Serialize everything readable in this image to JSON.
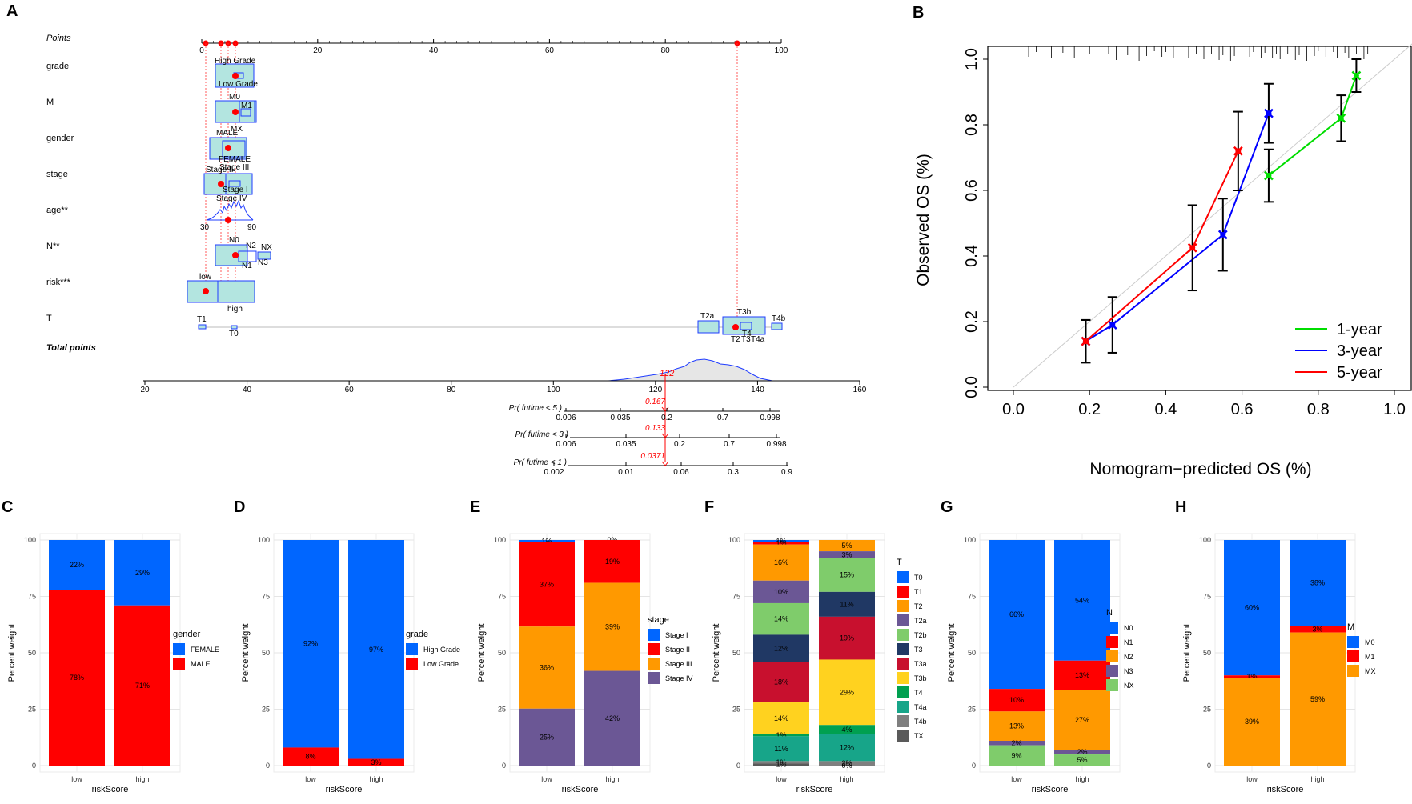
{
  "panel_letters": [
    "A",
    "B",
    "C",
    "D",
    "E",
    "F",
    "G",
    "H"
  ],
  "colors": {
    "blue": "#0066FF",
    "red": "#FF0000",
    "orange": "#FF9900",
    "purple": "#6B5795",
    "lightgreen": "#7FCC6B",
    "navy": "#203864",
    "darkred": "#C8102E",
    "yellow": "#FFD21F",
    "darkgreen": "#00A050",
    "teal": "#17A589",
    "grey": "#7F7F7F",
    "darkgrey": "#5A5A5A",
    "nomo_fill": "#B3E5E0",
    "nomo_box": "#1F3CFF",
    "green_line": "#00DD00"
  },
  "nomogram": {
    "points_label": "Points",
    "points_ticks": [
      "0",
      "20",
      "40",
      "60",
      "80",
      "100"
    ],
    "rows": [
      {
        "label": "grade",
        "sub": [
          "High Grade",
          "Low Grade"
        ]
      },
      {
        "label": "M",
        "sub": [
          "M0",
          "M1",
          "MX"
        ]
      },
      {
        "label": "gender",
        "sub": [
          "MALE",
          "FEMALE"
        ]
      },
      {
        "label": "stage",
        "sub": [
          "Stage II",
          "Stage III",
          "Stage I",
          "Stage IV"
        ]
      },
      {
        "label": "age**",
        "sub": [
          "30",
          "90"
        ]
      },
      {
        "label": "N**",
        "sub": [
          "N0",
          "N2",
          "NX",
          "N1",
          "N3"
        ]
      },
      {
        "label": "risk***",
        "sub": [
          "low",
          "high"
        ]
      },
      {
        "label": "T",
        "sub": [
          "T1",
          "T0",
          "T2a",
          "T3b",
          "T2",
          "T3",
          "T4a",
          "T4b",
          "T4"
        ]
      }
    ],
    "total_label": "Total points",
    "total_ticks": [
      "20",
      "40",
      "60",
      "80",
      "100",
      "120",
      "140",
      "160"
    ],
    "total_value": "122",
    "probs": [
      {
        "label": "Pr( futime < 5 )",
        "value": "0.167",
        "ticks": [
          "0.006",
          "0.035",
          "0.2",
          "0.7",
          "0.998"
        ]
      },
      {
        "label": "Pr( futime < 3 )",
        "value": "0.133",
        "ticks": [
          "0.006",
          "0.035",
          "0.2",
          "0.7",
          "0.998"
        ]
      },
      {
        "label": "Pr( futime < 1 )",
        "value": "0.0371",
        "ticks": [
          "0.002",
          "0.01",
          "0.06",
          "0.3",
          "0.9"
        ]
      }
    ]
  },
  "chart_data": [
    {
      "id": "B",
      "type": "line",
      "title": "",
      "xlabel": "Nomogram−predicted OS (%)",
      "ylabel": "Observed OS (%)",
      "xlim": [
        0,
        1
      ],
      "ylim": [
        0,
        1
      ],
      "xticks": [
        "0.0",
        "0.2",
        "0.4",
        "0.6",
        "0.8",
        "1.0"
      ],
      "yticks": [
        "0.0",
        "0.2",
        "0.4",
        "0.6",
        "0.8",
        "1.0"
      ],
      "legend_position": "bottom-right",
      "series": [
        {
          "name": "1-year",
          "color": "#00DD00",
          "x": [
            0.67,
            0.86,
            0.9
          ],
          "y": [
            0.645,
            0.82,
            0.95
          ],
          "err": [
            0.08,
            0.07,
            0.05
          ]
        },
        {
          "name": "3-year",
          "color": "#0000FF",
          "x": [
            0.19,
            0.26,
            0.55,
            0.67
          ],
          "y": [
            0.14,
            0.19,
            0.465,
            0.835
          ],
          "err": [
            0.065,
            0.085,
            0.11,
            0.09
          ]
        },
        {
          "name": "5-year",
          "color": "#FF0000",
          "x": [
            0.19,
            0.47,
            0.59
          ],
          "y": [
            0.14,
            0.425,
            0.72
          ],
          "err": [
            0.065,
            0.13,
            0.12
          ]
        }
      ]
    },
    {
      "id": "C",
      "type": "bar",
      "stacked": true,
      "xlabel": "riskScore",
      "ylabel": "Percent weight",
      "categories": [
        "low",
        "high"
      ],
      "yticks": [
        "0",
        "25",
        "50",
        "75",
        "100"
      ],
      "legend_title": "gender",
      "series": [
        {
          "name": "FEMALE",
          "color": "#0066FF",
          "values": [
            22,
            29
          ],
          "labels": [
            "22%",
            "29%"
          ]
        },
        {
          "name": "MALE",
          "color": "#FF0000",
          "values": [
            78,
            71
          ],
          "labels": [
            "78%",
            "71%"
          ]
        }
      ]
    },
    {
      "id": "D",
      "type": "bar",
      "stacked": true,
      "xlabel": "riskScore",
      "ylabel": "Percent weight",
      "categories": [
        "low",
        "high"
      ],
      "yticks": [
        "0",
        "25",
        "50",
        "75",
        "100"
      ],
      "legend_title": "grade",
      "series": [
        {
          "name": "High Grade",
          "color": "#0066FF",
          "values": [
            92,
            97
          ],
          "labels": [
            "92%",
            "97%"
          ]
        },
        {
          "name": "Low Grade",
          "color": "#FF0000",
          "values": [
            8,
            3
          ],
          "labels": [
            "8%",
            "3%"
          ]
        }
      ]
    },
    {
      "id": "E",
      "type": "bar",
      "stacked": true,
      "xlabel": "riskScore",
      "ylabel": "Percent weight",
      "categories": [
        "low",
        "high"
      ],
      "yticks": [
        "0",
        "25",
        "50",
        "75",
        "100"
      ],
      "legend_title": "stage",
      "series": [
        {
          "name": "Stage I",
          "color": "#0066FF",
          "values": [
            1,
            0
          ],
          "labels": [
            "1%",
            "0%"
          ]
        },
        {
          "name": "Stage II",
          "color": "#FF0000",
          "values": [
            37,
            19
          ],
          "labels": [
            "37%",
            "19%"
          ]
        },
        {
          "name": "Stage III",
          "color": "#FF9900",
          "values": [
            36,
            39
          ],
          "labels": [
            "36%",
            "39%"
          ]
        },
        {
          "name": "Stage IV",
          "color": "#6B5795",
          "values": [
            25,
            42
          ],
          "labels": [
            "25%",
            "42%"
          ]
        }
      ]
    },
    {
      "id": "F",
      "type": "bar",
      "stacked": true,
      "xlabel": "riskScore",
      "ylabel": "Percent weight",
      "categories": [
        "low",
        "high"
      ],
      "yticks": [
        "0",
        "25",
        "50",
        "75",
        "100"
      ],
      "legend_title": "T",
      "series": [
        {
          "name": "T0",
          "color": "#0066FF",
          "values": [
            1,
            0
          ],
          "labels": [
            "1%",
            ""
          ]
        },
        {
          "name": "T1",
          "color": "#FF0000",
          "values": [
            1,
            0
          ],
          "labels": [
            "1%",
            ""
          ]
        },
        {
          "name": "T2",
          "color": "#FF9900",
          "values": [
            16,
            5
          ],
          "labels": [
            "16%",
            "5%"
          ]
        },
        {
          "name": "T2a",
          "color": "#6B5795",
          "values": [
            10,
            3
          ],
          "labels": [
            "10%",
            "3%"
          ]
        },
        {
          "name": "T2b",
          "color": "#7FCC6B",
          "values": [
            14,
            15
          ],
          "labels": [
            "14%",
            "15%"
          ]
        },
        {
          "name": "T3",
          "color": "#203864",
          "values": [
            12,
            11
          ],
          "labels": [
            "12%",
            "11%"
          ]
        },
        {
          "name": "T3a",
          "color": "#C8102E",
          "values": [
            18,
            19
          ],
          "labels": [
            "18%",
            "19%"
          ]
        },
        {
          "name": "T3b",
          "color": "#FFD21F",
          "values": [
            14,
            29
          ],
          "labels": [
            "14%",
            "29%"
          ]
        },
        {
          "name": "T4",
          "color": "#00A050",
          "values": [
            1,
            4
          ],
          "labels": [
            "1%",
            "4%"
          ]
        },
        {
          "name": "T4a",
          "color": "#17A589",
          "values": [
            11,
            12
          ],
          "labels": [
            "11%",
            "12%"
          ]
        },
        {
          "name": "T4b",
          "color": "#7F7F7F",
          "values": [
            1,
            2
          ],
          "labels": [
            "1%",
            "2%"
          ]
        },
        {
          "name": "TX",
          "color": "#5A5A5A",
          "values": [
            1,
            0
          ],
          "labels": [
            "1%",
            "0%"
          ]
        }
      ]
    },
    {
      "id": "G",
      "type": "bar",
      "stacked": true,
      "xlabel": "riskScore",
      "ylabel": "Percent weight",
      "categories": [
        "low",
        "high"
      ],
      "yticks": [
        "0",
        "25",
        "50",
        "75",
        "100"
      ],
      "legend_title": "N",
      "series": [
        {
          "name": "N0",
          "color": "#0066FF",
          "values": [
            66,
            54
          ],
          "labels": [
            "66%",
            "54%"
          ]
        },
        {
          "name": "N1",
          "color": "#FF0000",
          "values": [
            10,
            13
          ],
          "labels": [
            "10%",
            "13%"
          ]
        },
        {
          "name": "N2",
          "color": "#FF9900",
          "values": [
            13,
            27
          ],
          "labels": [
            "13%",
            "27%"
          ]
        },
        {
          "name": "N3",
          "color": "#6B5795",
          "values": [
            2,
            2
          ],
          "labels": [
            "2%",
            "2%"
          ]
        },
        {
          "name": "NX",
          "color": "#7FCC6B",
          "values": [
            9,
            5
          ],
          "labels": [
            "9%",
            "5%"
          ]
        }
      ]
    },
    {
      "id": "H",
      "type": "bar",
      "stacked": true,
      "xlabel": "riskScore",
      "ylabel": "Percent weight",
      "categories": [
        "low",
        "high"
      ],
      "yticks": [
        "0",
        "25",
        "50",
        "75",
        "100"
      ],
      "legend_title": "M",
      "series": [
        {
          "name": "M0",
          "color": "#0066FF",
          "values": [
            60,
            38
          ],
          "labels": [
            "60%",
            "38%"
          ]
        },
        {
          "name": "M1",
          "color": "#FF0000",
          "values": [
            1,
            3
          ],
          "labels": [
            "1%",
            "3%"
          ]
        },
        {
          "name": "MX",
          "color": "#FF9900",
          "values": [
            39,
            59
          ],
          "labels": [
            "39%",
            "59%"
          ]
        }
      ]
    }
  ]
}
